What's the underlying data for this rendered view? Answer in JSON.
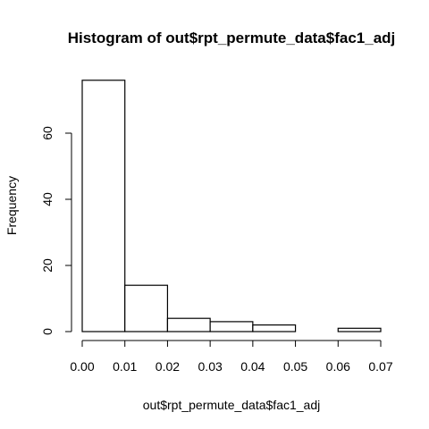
{
  "chart_data": {
    "type": "bar",
    "title": "Histogram of out$rpt_permute_data$fac1_adj",
    "xlabel": "out$rpt_permute_data$fac1_adj",
    "ylabel": "Frequency",
    "bins": [
      {
        "start": 0.0,
        "end": 0.01,
        "count": 76
      },
      {
        "start": 0.01,
        "end": 0.02,
        "count": 14
      },
      {
        "start": 0.02,
        "end": 0.03,
        "count": 4
      },
      {
        "start": 0.03,
        "end": 0.04,
        "count": 3
      },
      {
        "start": 0.04,
        "end": 0.05,
        "count": 2
      },
      {
        "start": 0.05,
        "end": 0.06,
        "count": 0
      },
      {
        "start": 0.06,
        "end": 0.07,
        "count": 1
      }
    ],
    "xlim": [
      0.0,
      0.07
    ],
    "ylim": [
      0,
      80
    ],
    "xticks": [
      "0.00",
      "0.01",
      "0.02",
      "0.03",
      "0.04",
      "0.05",
      "0.06",
      "0.07"
    ],
    "xtick_values": [
      0.0,
      0.01,
      0.02,
      0.03,
      0.04,
      0.05,
      0.06,
      0.07
    ],
    "yticks": [
      "0",
      "20",
      "40",
      "60"
    ],
    "ytick_values": [
      0,
      20,
      40,
      60
    ],
    "grid": false,
    "bar_fill": "#ffffff",
    "bar_stroke": "#000000"
  }
}
